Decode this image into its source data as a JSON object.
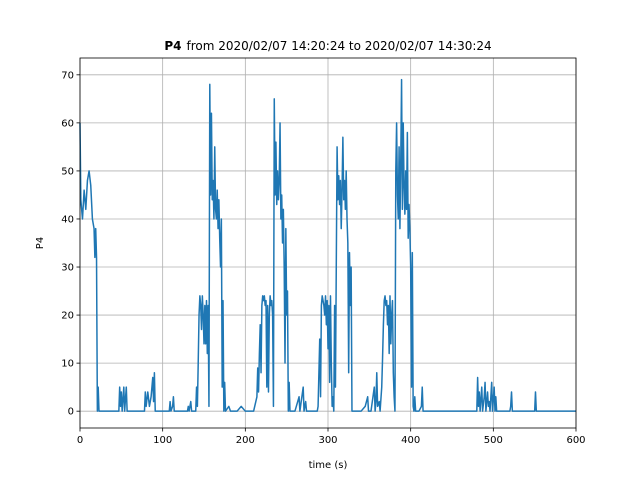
{
  "chart_data": {
    "type": "line",
    "title": {
      "bold": "P4",
      "rest": "from 2020/02/07 14:20:24 to 2020/02/07 14:30:24"
    },
    "xlabel": "time (s)",
    "ylabel": "P4",
    "xlim": [
      0,
      600
    ],
    "ylim": [
      -3.5,
      73.5
    ],
    "xticks": [
      0,
      100,
      200,
      300,
      400,
      500,
      600
    ],
    "yticks": [
      0,
      10,
      20,
      30,
      40,
      50,
      60,
      70
    ],
    "grid": true,
    "series": [
      {
        "color": "#1f77b4",
        "x": [
          0,
          1,
          3,
          5,
          7,
          9,
          11,
          13,
          15,
          17,
          18,
          19,
          20,
          21,
          22,
          23,
          30,
          47,
          48,
          49,
          50,
          51,
          53,
          54,
          56,
          57,
          60,
          78,
          79,
          80,
          82,
          84,
          86,
          88,
          89,
          90,
          91,
          108,
          109,
          110,
          112,
          113,
          114,
          130,
          131,
          132,
          134,
          135,
          140,
          141,
          142,
          143,
          144,
          145,
          146,
          147,
          148,
          149,
          150,
          151,
          152,
          153,
          154,
          155,
          156,
          157,
          158,
          159,
          160,
          161,
          162,
          163,
          164,
          165,
          166,
          167,
          168,
          169,
          170,
          171,
          172,
          173,
          174,
          175,
          176,
          180,
          182,
          190,
          195,
          200,
          210,
          214,
          215,
          216,
          217,
          218,
          219,
          220,
          221,
          222,
          223,
          224,
          225,
          226,
          227,
          228,
          229,
          230,
          231,
          232,
          233,
          234,
          235,
          236,
          237,
          238,
          239,
          240,
          241,
          242,
          243,
          244,
          245,
          246,
          247,
          248,
          249,
          250,
          251,
          252,
          253,
          254,
          260,
          265,
          266,
          270,
          271,
          273,
          274,
          280,
          287,
          288,
          289,
          290,
          291,
          292,
          293,
          294,
          295,
          296,
          297,
          298,
          299,
          300,
          301,
          302,
          303,
          304,
          305,
          306,
          307,
          308,
          309,
          310,
          311,
          312,
          313,
          314,
          315,
          316,
          317,
          318,
          319,
          320,
          321,
          322,
          323,
          324,
          325,
          326,
          327,
          328,
          329,
          330,
          340,
          345,
          348,
          349,
          352,
          356,
          357,
          358,
          359,
          360,
          362,
          363,
          365,
          366,
          367,
          368,
          369,
          370,
          371,
          372,
          373,
          374,
          375,
          376,
          377,
          378,
          379,
          380,
          381,
          382,
          383,
          384,
          385,
          386,
          387,
          388,
          389,
          390,
          391,
          392,
          393,
          394,
          395,
          396,
          397,
          398,
          399,
          400,
          401,
          402,
          403,
          404,
          405,
          406,
          410,
          413,
          414,
          415,
          420,
          450,
          480,
          481,
          482,
          483,
          484,
          486,
          487,
          489,
          490,
          491,
          493,
          494,
          495,
          496,
          498,
          499,
          501,
          502,
          503,
          504,
          520,
          521,
          522,
          523,
          530,
          550,
          551,
          552,
          600
        ],
        "values": [
          60,
          44,
          40,
          46,
          42,
          48,
          50,
          47,
          40,
          38,
          32,
          38,
          32,
          0,
          5,
          0,
          0,
          0,
          5,
          1,
          4,
          0,
          5,
          0,
          5,
          0,
          0,
          0,
          4,
          1,
          4,
          1,
          3,
          7,
          2,
          8,
          0,
          0,
          2,
          0,
          1,
          3,
          0,
          0,
          1,
          0,
          2,
          0,
          0,
          5,
          1,
          10,
          20,
          24,
          22,
          17,
          24,
          20,
          14,
          22,
          14,
          23,
          12,
          22,
          1,
          68,
          45,
          62,
          44,
          48,
          40,
          55,
          42,
          40,
          46,
          38,
          44,
          36,
          30,
          40,
          5,
          23,
          0,
          6,
          0,
          1,
          0,
          0,
          1,
          0,
          0,
          3,
          9,
          4,
          12,
          18,
          8,
          22,
          24,
          23,
          24,
          22,
          23,
          5,
          22,
          4,
          20,
          24,
          22,
          23,
          20,
          1,
          65,
          45,
          56,
          43,
          50,
          44,
          48,
          60,
          40,
          45,
          35,
          42,
          30,
          10,
          38,
          20,
          25,
          0,
          6,
          0,
          0,
          3,
          0,
          5,
          0,
          2,
          0,
          0,
          0,
          1,
          8,
          15,
          3,
          22,
          24,
          23,
          22,
          20,
          24,
          18,
          23,
          13,
          22,
          6,
          24,
          10,
          1,
          3,
          0,
          22,
          5,
          30,
          55,
          44,
          49,
          43,
          48,
          38,
          46,
          57,
          44,
          48,
          42,
          50,
          40,
          35,
          8,
          33,
          22,
          30,
          0,
          0,
          0,
          1,
          3,
          0,
          0,
          5,
          0,
          2,
          8,
          1,
          2,
          0,
          5,
          11,
          18,
          23,
          24,
          22,
          23,
          18,
          22,
          12,
          24,
          14,
          20,
          23,
          8,
          3,
          0,
          50,
          60,
          45,
          40,
          55,
          38,
          52,
          69,
          42,
          60,
          47,
          41,
          50,
          42,
          58,
          36,
          43,
          38,
          30,
          5,
          33,
          1,
          0,
          3,
          0,
          0,
          1,
          5,
          0,
          0,
          0,
          0,
          7,
          1,
          4,
          0,
          5,
          0,
          3,
          6,
          0,
          4,
          1,
          2,
          0,
          6,
          0,
          5,
          0,
          3,
          0,
          0,
          1,
          4,
          0,
          0,
          0,
          4,
          0,
          0
        ]
      }
    ]
  }
}
